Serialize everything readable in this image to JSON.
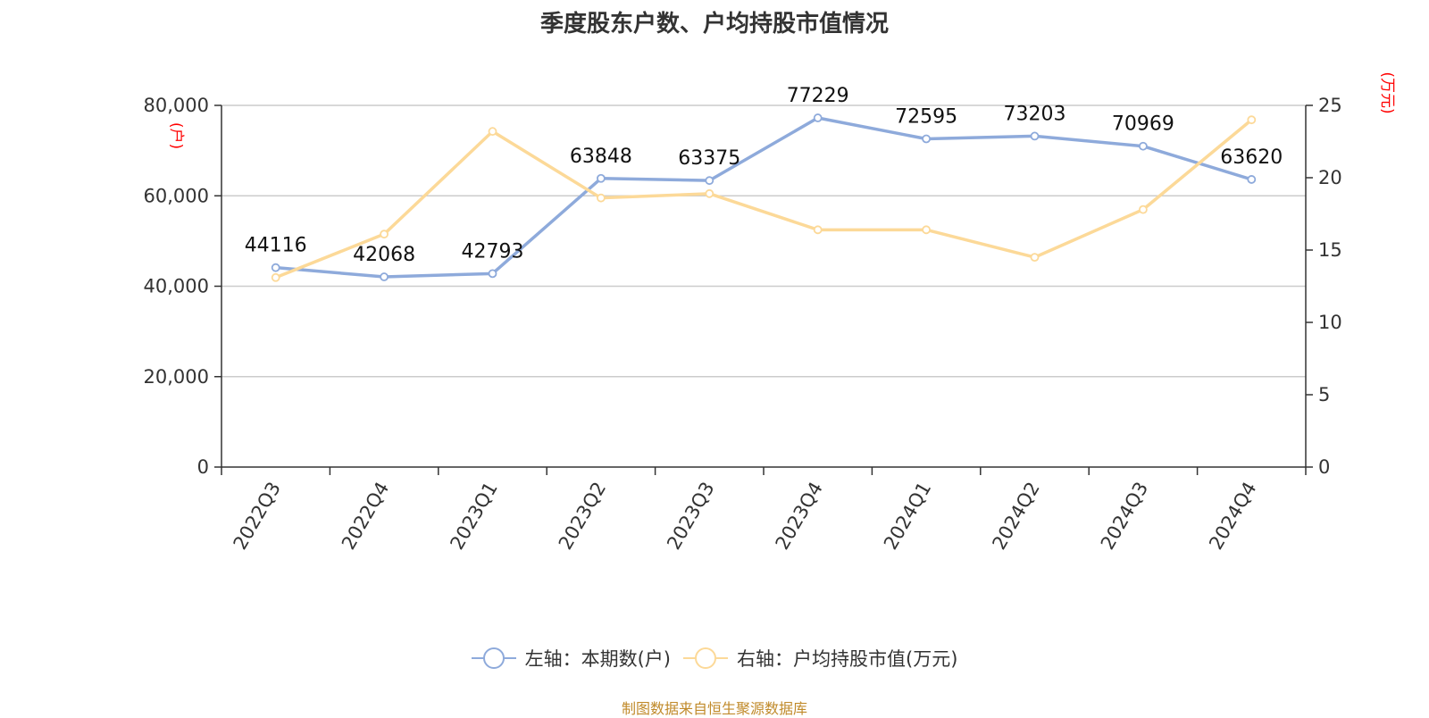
{
  "title": "季度股东户数、户均持股市值情况",
  "source": "制图数据来自恒生聚源数据库",
  "colors": {
    "series1": "#8eaadb",
    "series2": "#fcd998",
    "axis": "#333333",
    "grid": "#cccccc",
    "unit": "#ff0000"
  },
  "chart_data": {
    "type": "line",
    "categories": [
      "2022Q3",
      "2022Q4",
      "2023Q1",
      "2023Q2",
      "2023Q3",
      "2023Q4",
      "2024Q1",
      "2024Q2",
      "2024Q3",
      "2024Q4"
    ],
    "left_axis": {
      "label": "(户)",
      "range": [
        0,
        80000
      ],
      "ticks": [
        "0",
        "20,000",
        "40,000",
        "60,000",
        "80,000"
      ],
      "tick_values": [
        0,
        20000,
        40000,
        60000,
        80000
      ]
    },
    "right_axis": {
      "label": "(万元)",
      "range": [
        0,
        25
      ],
      "ticks": [
        "0",
        "5",
        "10",
        "15",
        "20",
        "25"
      ],
      "tick_values": [
        0,
        5,
        10,
        15,
        20,
        25
      ]
    },
    "grid": true,
    "legend_position": "bottom",
    "series": [
      {
        "name": "左轴：本期数(户)",
        "axis": "left",
        "values": [
          44116,
          42068,
          42793,
          63848,
          63375,
          77229,
          72595,
          73203,
          70969,
          63620
        ],
        "labels": [
          "44116",
          "42068",
          "42793",
          "63848",
          "63375",
          "77229",
          "72595",
          "73203",
          "70969",
          "63620"
        ]
      },
      {
        "name": "右轴：户均持股市值(万元)",
        "axis": "right",
        "values": [
          13.1,
          16.1,
          23.2,
          18.6,
          18.9,
          16.4,
          16.4,
          14.5,
          17.8,
          24.0
        ]
      }
    ]
  }
}
